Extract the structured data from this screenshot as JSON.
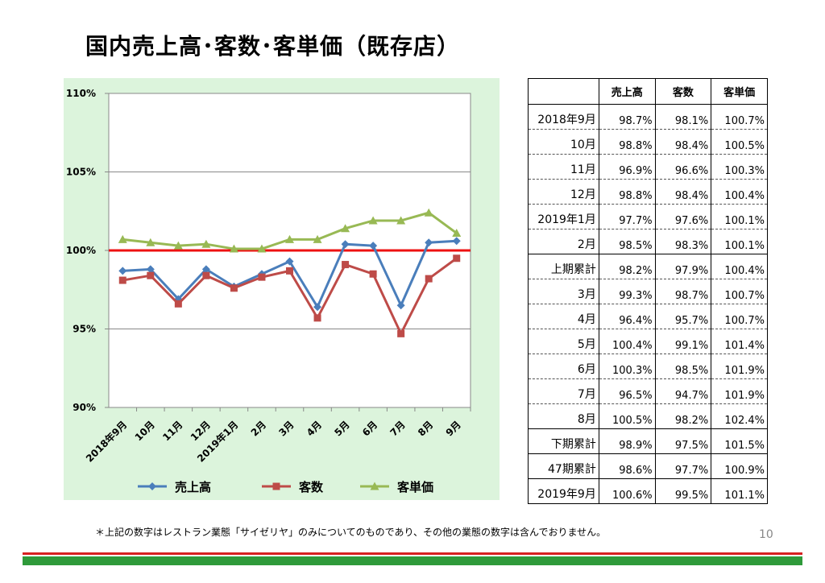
{
  "title": "国内売上高･客数･客単価（既存店）",
  "chart_data": {
    "type": "line",
    "categories": [
      "2018年9月",
      "10月",
      "11月",
      "12月",
      "2019年1月",
      "2月",
      "3月",
      "4月",
      "5月",
      "6月",
      "7月",
      "8月",
      "9月"
    ],
    "series": [
      {
        "name": "売上高",
        "color": "#4a7ebb",
        "marker": "diamond",
        "values": [
          98.7,
          98.8,
          96.9,
          98.8,
          97.7,
          98.5,
          99.3,
          96.4,
          100.4,
          100.3,
          96.5,
          100.5,
          100.6
        ]
      },
      {
        "name": "客数",
        "color": "#be4b48",
        "marker": "square",
        "values": [
          98.1,
          98.4,
          96.6,
          98.4,
          97.6,
          98.3,
          98.7,
          95.7,
          99.1,
          98.5,
          94.7,
          98.2,
          99.5
        ]
      },
      {
        "name": "客単価",
        "color": "#98b954",
        "marker": "triangle",
        "values": [
          100.7,
          100.5,
          100.3,
          100.4,
          100.1,
          100.1,
          100.7,
          100.7,
          101.4,
          101.9,
          101.9,
          102.4,
          101.1
        ]
      }
    ],
    "ylim": [
      90,
      110
    ],
    "yticks": [
      90,
      95,
      100,
      105,
      110
    ],
    "ytick_labels": [
      "90%",
      "95%",
      "100%",
      "105%",
      "110%"
    ],
    "reference_line": {
      "value": 100,
      "color": "#ee1111"
    },
    "legend_position": "bottom",
    "grid": true
  },
  "table": {
    "headers": [
      "",
      "売上高",
      "客数",
      "客単価"
    ],
    "rows": [
      {
        "label": "2018年9月",
        "sales": "98.7%",
        "customers": "98.1%",
        "unit_price": "100.7%"
      },
      {
        "label": "10月",
        "sales": "98.8%",
        "customers": "98.4%",
        "unit_price": "100.5%"
      },
      {
        "label": "11月",
        "sales": "96.9%",
        "customers": "96.6%",
        "unit_price": "100.3%"
      },
      {
        "label": "12月",
        "sales": "98.8%",
        "customers": "98.4%",
        "unit_price": "100.4%"
      },
      {
        "label": "2019年1月",
        "sales": "97.7%",
        "customers": "97.6%",
        "unit_price": "100.1%"
      },
      {
        "label": "2月",
        "sales": "98.5%",
        "customers": "98.3%",
        "unit_price": "100.1%"
      },
      {
        "label": "上期累計",
        "sales": "98.2%",
        "customers": "97.9%",
        "unit_price": "100.4%"
      },
      {
        "label": "3月",
        "sales": "99.3%",
        "customers": "98.7%",
        "unit_price": "100.7%"
      },
      {
        "label": "4月",
        "sales": "96.4%",
        "customers": "95.7%",
        "unit_price": "100.7%"
      },
      {
        "label": "5月",
        "sales": "100.4%",
        "customers": "99.1%",
        "unit_price": "101.4%"
      },
      {
        "label": "6月",
        "sales": "100.3%",
        "customers": "98.5%",
        "unit_price": "101.9%"
      },
      {
        "label": "7月",
        "sales": "96.5%",
        "customers": "94.7%",
        "unit_price": "101.9%"
      },
      {
        "label": "8月",
        "sales": "100.5%",
        "customers": "98.2%",
        "unit_price": "102.4%"
      },
      {
        "label": "下期累計",
        "sales": "98.9%",
        "customers": "97.5%",
        "unit_price": "101.5%"
      },
      {
        "label": "47期累計",
        "sales": "98.6%",
        "customers": "97.7%",
        "unit_price": "100.9%"
      },
      {
        "label": "2019年9月",
        "sales": "100.6%",
        "customers": "99.5%",
        "unit_price": "101.1%"
      }
    ]
  },
  "footnote": "＊上記の数字はレストラン業態「サイゼリヤ」のみについてのものであり、その他の業態の数字は含んでおりません。",
  "page_number": "10",
  "colors": {
    "chart_bg": "#dcf4dc",
    "accent_red": "#d62020",
    "accent_green": "#2e9a3a"
  }
}
